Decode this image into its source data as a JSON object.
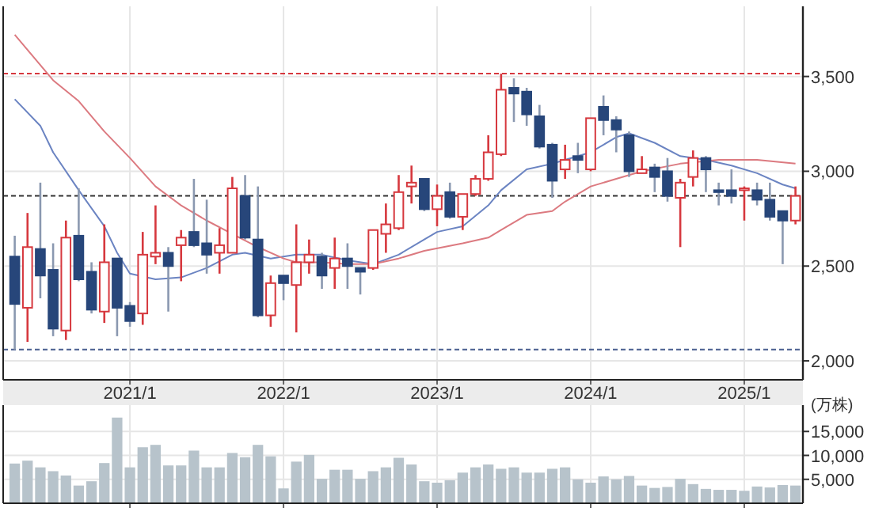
{
  "chart_data": [
    {
      "type": "candlestick",
      "x": [
        "2020-04",
        "2020-05",
        "2020-06",
        "2020-07",
        "2020-08",
        "2020-09",
        "2020-10",
        "2020-11",
        "2020-12",
        "2021-01",
        "2021-02",
        "2021-03",
        "2021-04",
        "2021-05",
        "2021-06",
        "2021-07",
        "2021-08",
        "2021-09",
        "2021-10",
        "2021-11",
        "2021-12",
        "2022-01",
        "2022-02",
        "2022-03",
        "2022-04",
        "2022-05",
        "2022-06",
        "2022-07",
        "2022-08",
        "2022-09",
        "2022-10",
        "2022-11",
        "2022-12",
        "2023-01",
        "2023-02",
        "2023-03",
        "2023-04",
        "2023-05",
        "2023-06",
        "2023-07",
        "2023-08",
        "2023-09",
        "2023-10",
        "2023-11",
        "2023-12",
        "2024-01",
        "2024-02",
        "2024-03",
        "2024-04",
        "2024-05",
        "2024-06",
        "2024-07",
        "2024-08",
        "2024-09",
        "2024-10",
        "2024-11",
        "2024-12",
        "2025-01",
        "2025-02",
        "2025-03",
        "2025-04",
        "2025-05"
      ],
      "ohlc": [
        [
          2550,
          2660,
          2060,
          2300
        ],
        [
          2280,
          2780,
          2100,
          2600
        ],
        [
          2590,
          2940,
          2330,
          2450
        ],
        [
          2480,
          2620,
          2130,
          2170
        ],
        [
          2160,
          2740,
          2110,
          2650
        ],
        [
          2660,
          2910,
          2420,
          2430
        ],
        [
          2470,
          2520,
          2250,
          2270
        ],
        [
          2260,
          2720,
          2200,
          2520
        ],
        [
          2540,
          2540,
          2130,
          2280
        ],
        [
          2290,
          2310,
          2180,
          2210
        ],
        [
          2250,
          2680,
          2190,
          2560
        ],
        [
          2550,
          2820,
          2510,
          2570
        ],
        [
          2570,
          2600,
          2260,
          2500
        ],
        [
          2610,
          2690,
          2420,
          2650
        ],
        [
          2680,
          2960,
          2600,
          2610
        ],
        [
          2620,
          2850,
          2460,
          2560
        ],
        [
          2570,
          2700,
          2460,
          2610
        ],
        [
          2570,
          2970,
          2570,
          2910
        ],
        [
          2870,
          2980,
          2640,
          2650
        ],
        [
          2640,
          2920,
          2230,
          2240
        ],
        [
          2240,
          2450,
          2180,
          2410
        ],
        [
          2450,
          2450,
          2320,
          2410
        ],
        [
          2400,
          2720,
          2150,
          2520
        ],
        [
          2520,
          2640,
          2460,
          2560
        ],
        [
          2550,
          2570,
          2380,
          2450
        ],
        [
          2490,
          2650,
          2380,
          2540
        ],
        [
          2540,
          2620,
          2380,
          2500
        ],
        [
          2490,
          2490,
          2350,
          2470
        ],
        [
          2490,
          2690,
          2480,
          2690
        ],
        [
          2670,
          2830,
          2570,
          2720
        ],
        [
          2700,
          2980,
          2690,
          2890
        ],
        [
          2920,
          3030,
          2830,
          2940
        ],
        [
          2960,
          2960,
          2790,
          2800
        ],
        [
          2800,
          2930,
          2710,
          2870
        ],
        [
          2890,
          2940,
          2750,
          2760
        ],
        [
          2760,
          2880,
          2690,
          2880
        ],
        [
          2880,
          2980,
          2870,
          2960
        ],
        [
          2960,
          3190,
          2950,
          3100
        ],
        [
          3090,
          3515,
          3080,
          3430
        ],
        [
          3440,
          3490,
          3260,
          3410
        ],
        [
          3420,
          3440,
          3240,
          3300
        ],
        [
          3290,
          3350,
          3120,
          3130
        ],
        [
          3140,
          3150,
          2860,
          2950
        ],
        [
          3010,
          3140,
          2960,
          3060
        ],
        [
          3080,
          3150,
          2990,
          3060
        ],
        [
          3010,
          3280,
          3000,
          3280
        ],
        [
          3340,
          3400,
          3190,
          3270
        ],
        [
          3270,
          3290,
          3100,
          3220
        ],
        [
          3190,
          3210,
          2970,
          3000
        ],
        [
          2990,
          3080,
          2990,
          3010
        ],
        [
          3020,
          3040,
          2890,
          2970
        ],
        [
          3000,
          3070,
          2840,
          2870
        ],
        [
          2860,
          2960,
          2600,
          2940
        ],
        [
          2970,
          3110,
          2920,
          3070
        ],
        [
          3070,
          3080,
          2890,
          3010
        ],
        [
          2900,
          2940,
          2820,
          2890
        ],
        [
          2900,
          3010,
          2830,
          2870
        ],
        [
          2900,
          2920,
          2740,
          2910
        ],
        [
          2900,
          2940,
          2820,
          2850
        ],
        [
          2850,
          2940,
          2740,
          2760
        ],
        [
          2790,
          2790,
          2510,
          2740
        ],
        [
          2740,
          2920,
          2720,
          2870
        ]
      ],
      "colors": [
        "#27467a",
        "#d6383e",
        "#27467a",
        "#27467a",
        "#d6383e",
        "#27467a",
        "#27467a",
        "#d6383e",
        "#27467a",
        "#27467a",
        "#d6383e",
        "#d6383e",
        "#27467a",
        "#d6383e",
        "#27467a",
        "#27467a",
        "#d6383e",
        "#d6383e",
        "#27467a",
        "#27467a",
        "#d6383e",
        "#27467a",
        "#d6383e",
        "#d6383e",
        "#27467a",
        "#d6383e",
        "#27467a",
        "#27467a",
        "#d6383e",
        "#d6383e",
        "#d6383e",
        "#d6383e",
        "#27467a",
        "#d6383e",
        "#27467a",
        "#d6383e",
        "#d6383e",
        "#d6383e",
        "#d6383e",
        "#27467a",
        "#27467a",
        "#27467a",
        "#27467a",
        "#d6383e",
        "#27467a",
        "#d6383e",
        "#27467a",
        "#27467a",
        "#27467a",
        "#d6383e",
        "#27467a",
        "#27467a",
        "#d6383e",
        "#d6383e",
        "#27467a",
        "#27467a",
        "#27467a",
        "#d6383e",
        "#27467a",
        "#27467a",
        "#27467a",
        "#d6383e"
      ],
      "series": [
        {
          "type": "line",
          "color": "#6b84c2",
          "x": [
            "2020-04",
            "2020-06",
            "2020-07",
            "2020-09",
            "2020-11",
            "2020-12",
            "2021-01",
            "2021-03",
            "2021-05",
            "2021-07",
            "2021-09",
            "2021-10",
            "2021-12",
            "2022-02",
            "2022-04",
            "2022-06",
            "2022-08",
            "2022-10",
            "2022-12",
            "2023-01",
            "2023-03",
            "2023-05",
            "2023-06",
            "2023-08",
            "2023-10",
            "2023-11",
            "2024-01",
            "2024-03",
            "2024-04",
            "2024-06",
            "2024-08",
            "2024-10",
            "2024-12",
            "2025-02",
            "2025-04",
            "2025-05"
          ],
          "values": [
            3380,
            3240,
            3100,
            2900,
            2710,
            2570,
            2460,
            2430,
            2440,
            2490,
            2560,
            2570,
            2540,
            2560,
            2560,
            2530,
            2510,
            2560,
            2640,
            2680,
            2710,
            2820,
            2900,
            3010,
            3040,
            3060,
            3100,
            3180,
            3200,
            3150,
            3080,
            3060,
            3030,
            2990,
            2930,
            2910
          ]
        },
        {
          "type": "line",
          "color": "#dc7a80",
          "x": [
            "2020-04",
            "2020-07",
            "2020-09",
            "2020-11",
            "2021-01",
            "2021-03",
            "2021-05",
            "2021-07",
            "2021-09",
            "2021-11",
            "2022-01",
            "2022-02",
            "2022-04",
            "2022-06",
            "2022-08",
            "2022-10",
            "2022-12",
            "2023-03",
            "2023-05",
            "2023-06",
            "2023-08",
            "2023-10",
            "2023-11",
            "2024-01",
            "2024-03",
            "2024-05",
            "2024-08",
            "2024-11",
            "2025-02",
            "2025-05"
          ],
          "values": [
            3720,
            3480,
            3370,
            3210,
            3070,
            2920,
            2820,
            2740,
            2670,
            2600,
            2540,
            2520,
            2520,
            2510,
            2510,
            2540,
            2580,
            2620,
            2650,
            2690,
            2770,
            2790,
            2840,
            2920,
            2960,
            3000,
            3040,
            3060,
            3060,
            3040
          ]
        }
      ],
      "xlim": [
        "2020-03-04",
        "2025-05-19"
      ],
      "xticks": [
        {
          "value": "2021-01",
          "label": "2021/1"
        },
        {
          "value": "2022-01",
          "label": "2022/1"
        },
        {
          "value": "2023-01",
          "label": "2023/1"
        },
        {
          "value": "2024-01",
          "label": "2024/1"
        },
        {
          "value": "2025-01",
          "label": "2025/1"
        }
      ],
      "ylim": [
        1900,
        3870
      ],
      "yticks": [
        {
          "value": 2000,
          "label": "2,000"
        },
        {
          "value": 2500,
          "label": "2,500"
        },
        {
          "value": 3000,
          "label": "3,000"
        },
        {
          "value": 3500,
          "label": "3,500"
        }
      ],
      "ref_lines": [
        {
          "axis": "y",
          "value": 3515,
          "color": "#d6383e",
          "line_style": "dashed"
        },
        {
          "axis": "y",
          "value": 2870,
          "color": "#333333",
          "line_style": "dashed"
        },
        {
          "axis": "y",
          "value": 2060,
          "color": "#4a5f90",
          "line_style": "dashed"
        }
      ],
      "grid": true
    },
    {
      "type": "bar",
      "ylabel": "(万株)",
      "color": "#b7c3cb",
      "x": [
        "2020-04",
        "2020-05",
        "2020-06",
        "2020-07",
        "2020-08",
        "2020-09",
        "2020-10",
        "2020-11",
        "2020-12",
        "2021-01",
        "2021-02",
        "2021-03",
        "2021-04",
        "2021-05",
        "2021-06",
        "2021-07",
        "2021-08",
        "2021-09",
        "2021-10",
        "2021-11",
        "2021-12",
        "2022-01",
        "2022-02",
        "2022-03",
        "2022-04",
        "2022-05",
        "2022-06",
        "2022-07",
        "2022-08",
        "2022-09",
        "2022-10",
        "2022-11",
        "2022-12",
        "2023-01",
        "2023-02",
        "2023-03",
        "2023-04",
        "2023-05",
        "2023-06",
        "2023-07",
        "2023-08",
        "2023-09",
        "2023-10",
        "2023-11",
        "2023-12",
        "2024-01",
        "2024-02",
        "2024-03",
        "2024-04",
        "2024-05",
        "2024-06",
        "2024-07",
        "2024-08",
        "2024-09",
        "2024-10",
        "2024-11",
        "2024-12",
        "2025-01",
        "2025-02",
        "2025-03",
        "2025-04",
        "2025-05"
      ],
      "values": [
        8300,
        8900,
        7500,
        6700,
        5800,
        3700,
        4600,
        8400,
        17900,
        7500,
        11700,
        12200,
        7900,
        7900,
        11000,
        7500,
        7500,
        10500,
        9600,
        12200,
        9800,
        3100,
        8700,
        10100,
        5100,
        7000,
        7000,
        5100,
        6700,
        7500,
        9500,
        8100,
        4600,
        4300,
        4800,
        6400,
        7500,
        8100,
        7200,
        7500,
        6400,
        6400,
        7200,
        7500,
        5000,
        4300,
        5600,
        5000,
        5700,
        3700,
        3200,
        3400,
        5100,
        4000,
        3000,
        2800,
        2800,
        2600,
        3500,
        3300,
        3800,
        3700
      ],
      "xlim": [
        "2020-03-04",
        "2025-05-19"
      ],
      "ylim": [
        0,
        20500
      ],
      "xticks": [
        {
          "value": "2021-01",
          "label": null
        },
        {
          "value": "2022-01",
          "label": null
        },
        {
          "value": "2023-01",
          "label": null
        },
        {
          "value": "2024-01",
          "label": null
        },
        {
          "value": "2025-01",
          "label": null
        }
      ],
      "yticks": [
        {
          "value": 5000,
          "label": "5,000"
        },
        {
          "value": 10000,
          "label": "10,000"
        },
        {
          "value": 15000,
          "label": "15,000"
        }
      ],
      "tick_labels": "y",
      "grid": true
    }
  ]
}
